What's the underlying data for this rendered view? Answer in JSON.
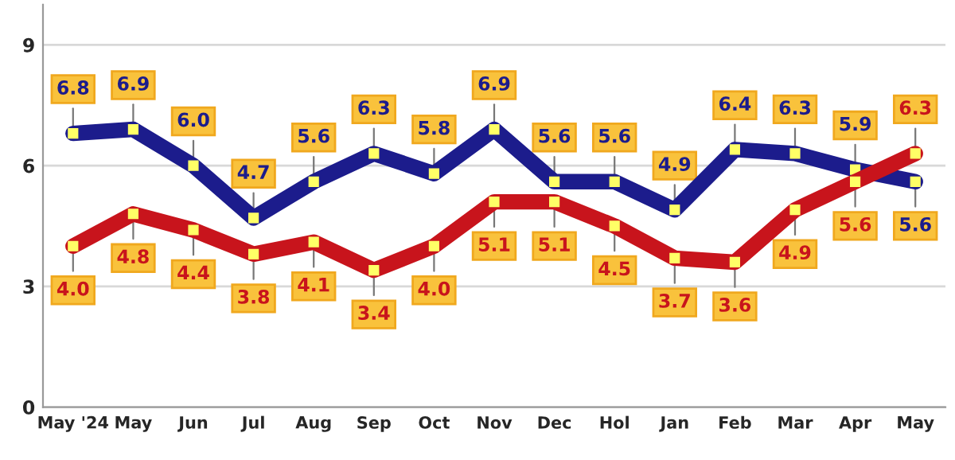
{
  "chart_data": {
    "type": "line",
    "categories": [
      "May '24",
      "May",
      "Jun",
      "Jul",
      "Aug",
      "Sep",
      "Oct",
      "Nov",
      "Dec",
      "Hol",
      "Jan",
      "Feb",
      "Mar",
      "Apr",
      "May"
    ],
    "series": [
      {
        "color": "#1c1c8c",
        "values": [
          6.8,
          6.9,
          6.0,
          4.7,
          5.6,
          6.3,
          5.8,
          6.9,
          5.6,
          5.6,
          4.9,
          6.4,
          6.3,
          5.9,
          5.6
        ],
        "value_labels": [
          "6.8",
          "6.9",
          "6.0",
          "4.7",
          "5.6",
          "6.3",
          "5.8",
          "6.9",
          "5.6",
          "5.6",
          "4.9",
          "6.4",
          "6.3",
          "5.9",
          "5.6"
        ]
      },
      {
        "color": "#c8141c",
        "values": [
          4.0,
          4.8,
          4.4,
          3.8,
          4.1,
          3.4,
          4.0,
          5.1,
          5.1,
          4.5,
          3.7,
          3.6,
          4.9,
          5.6,
          6.3
        ],
        "value_labels": [
          "4.0",
          "4.8",
          "4.4",
          "3.8",
          "4.1",
          "3.4",
          "4.0",
          "5.1",
          "5.1",
          "4.5",
          "3.7",
          "3.6",
          "4.9",
          "5.6",
          "6.3"
        ]
      }
    ],
    "ylim": [
      0,
      10
    ],
    "yticks": [
      0,
      3,
      6,
      9
    ],
    "grid": "y",
    "marker": "square",
    "line_style": "solid"
  }
}
